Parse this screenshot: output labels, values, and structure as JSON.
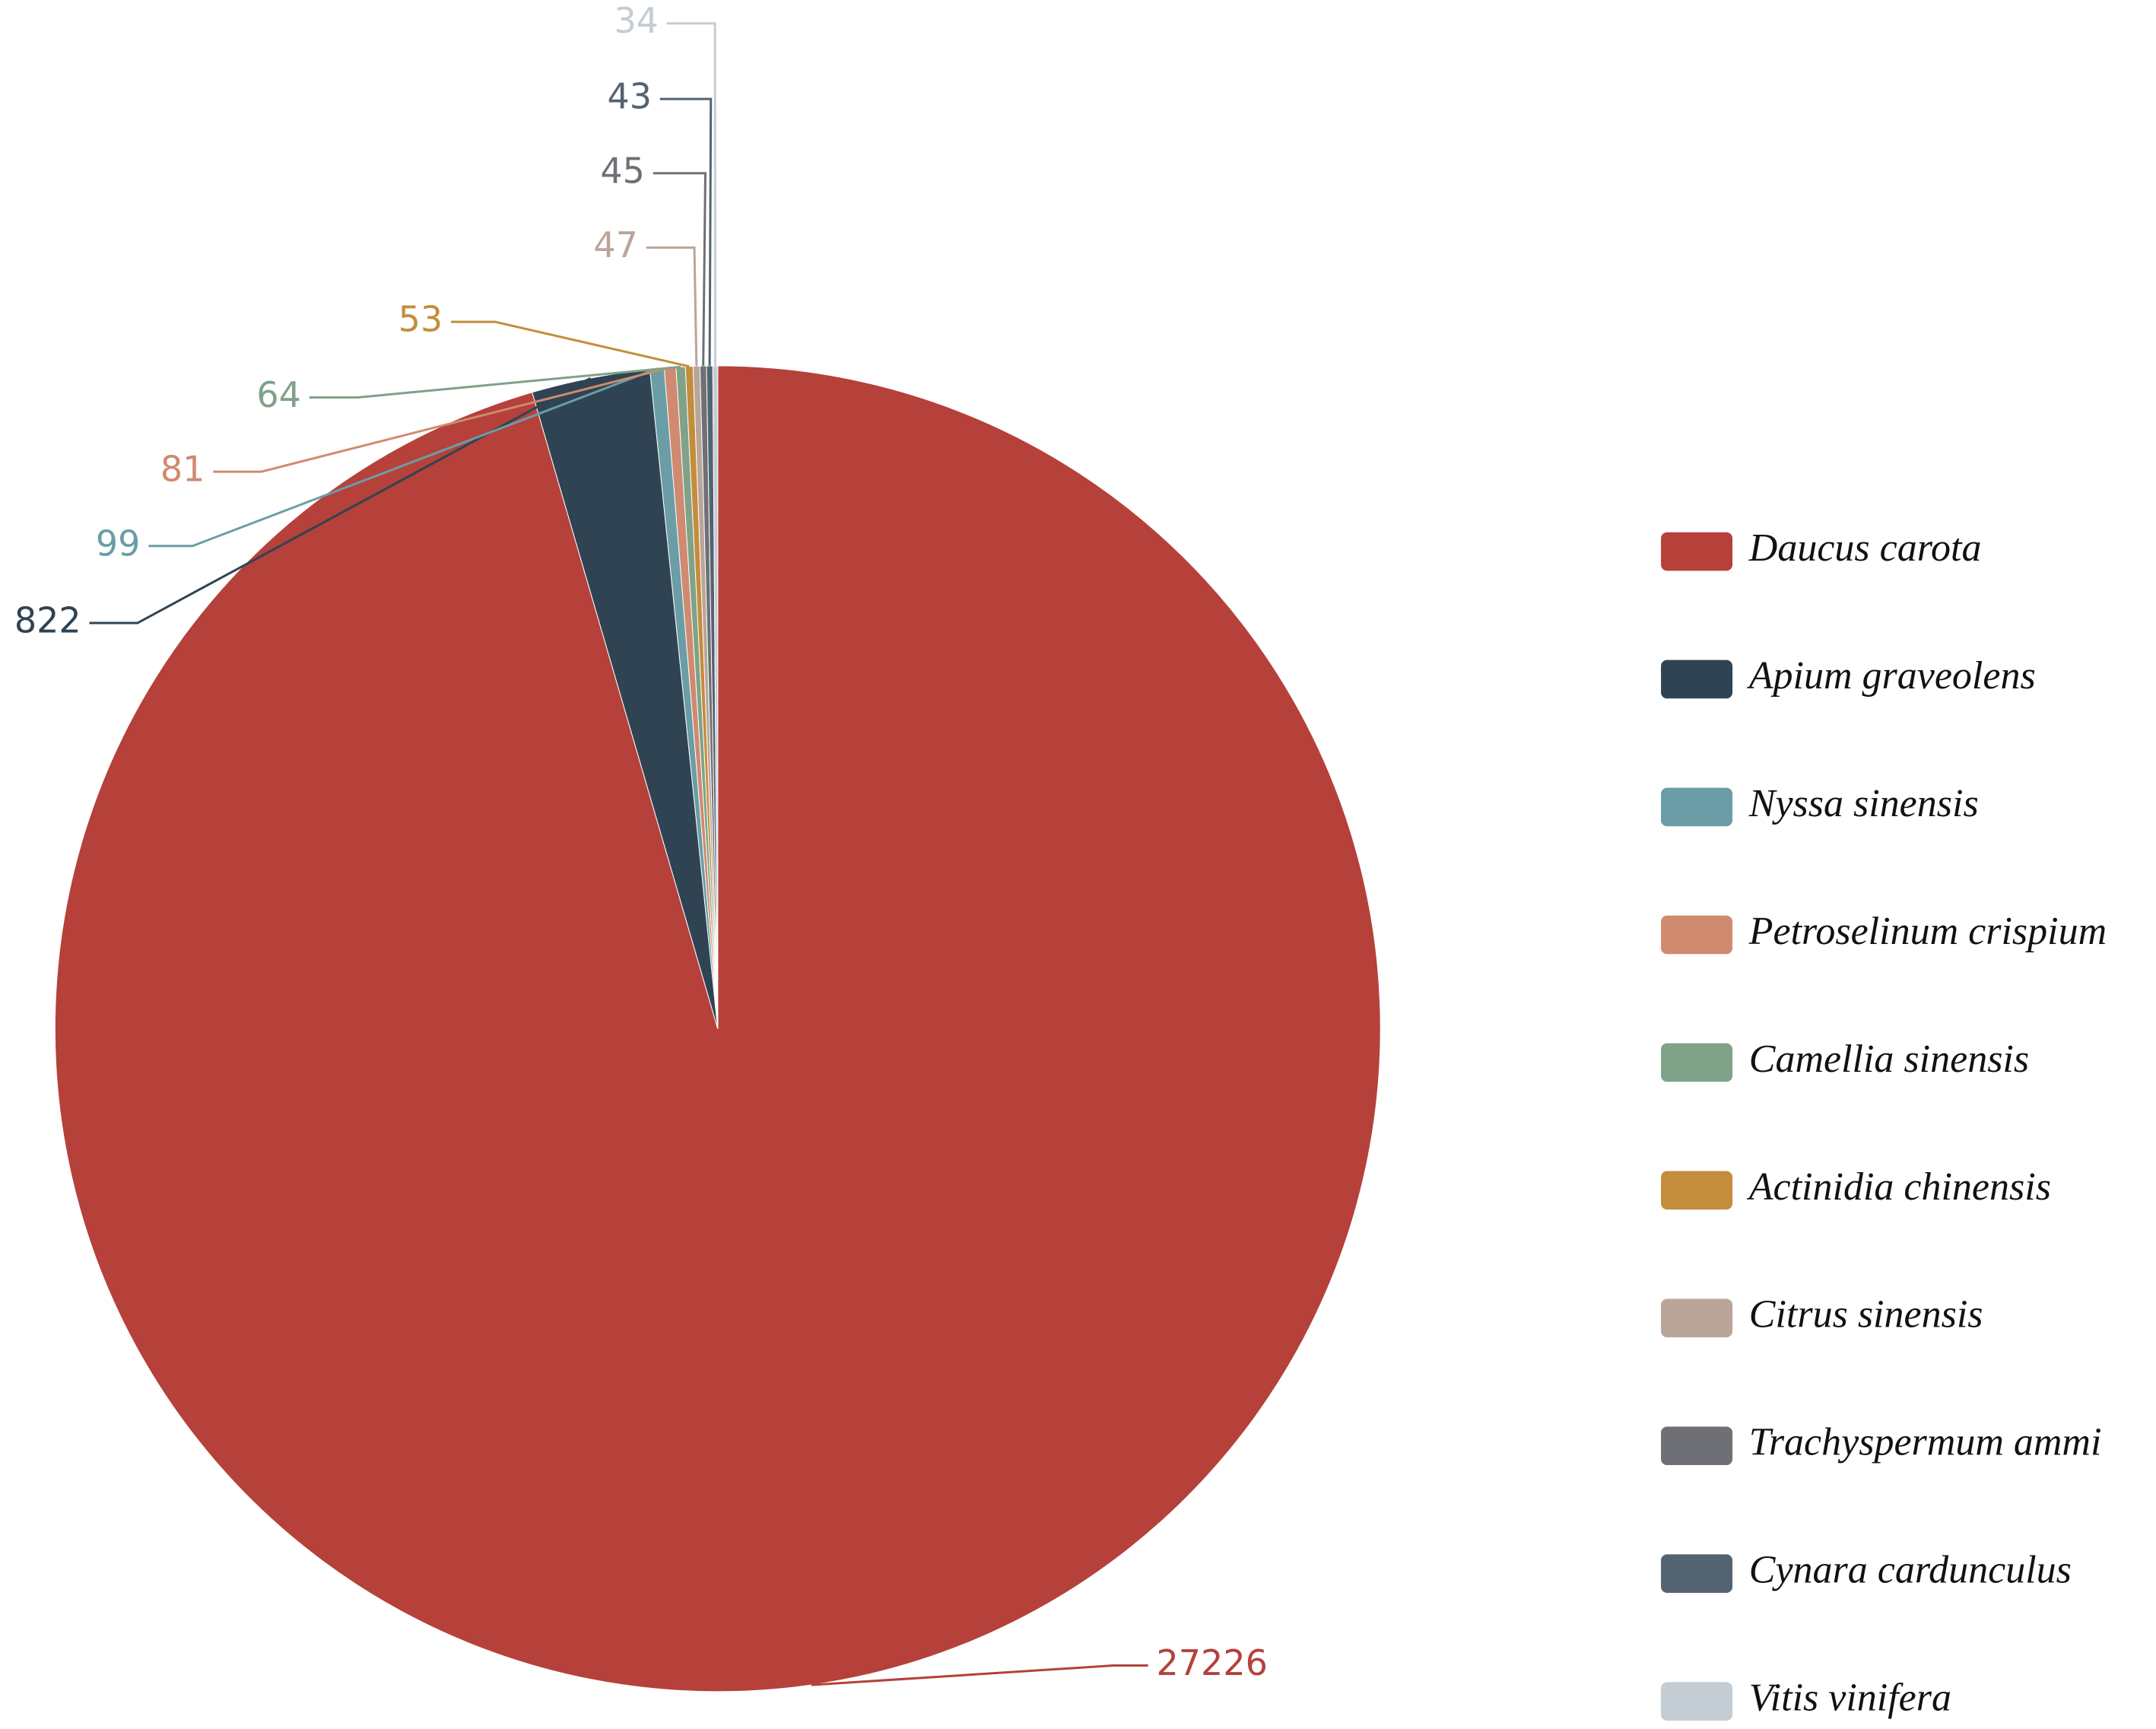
{
  "chart_data": {
    "type": "pie",
    "categories": [
      "Daucus carota",
      "Apium graveolens",
      "Nyssa sinensis",
      "Petroselinum crispium",
      "Camellia sinensis",
      "Actinidia chinensis",
      "Citrus sinensis",
      "Trachyspermum ammi",
      "Cynara cardunculus",
      "Vitis vinifera"
    ],
    "values": [
      27226,
      822,
      99,
      81,
      64,
      53,
      47,
      45,
      43,
      34
    ],
    "colors": [
      "#b5413a",
      "#2f4353",
      "#6a9da6",
      "#cf8a6f",
      "#7fa288",
      "#c48d3c",
      "#baa59b",
      "#6e7075",
      "#546371",
      "#c4ccd4"
    ],
    "legend": "right"
  }
}
